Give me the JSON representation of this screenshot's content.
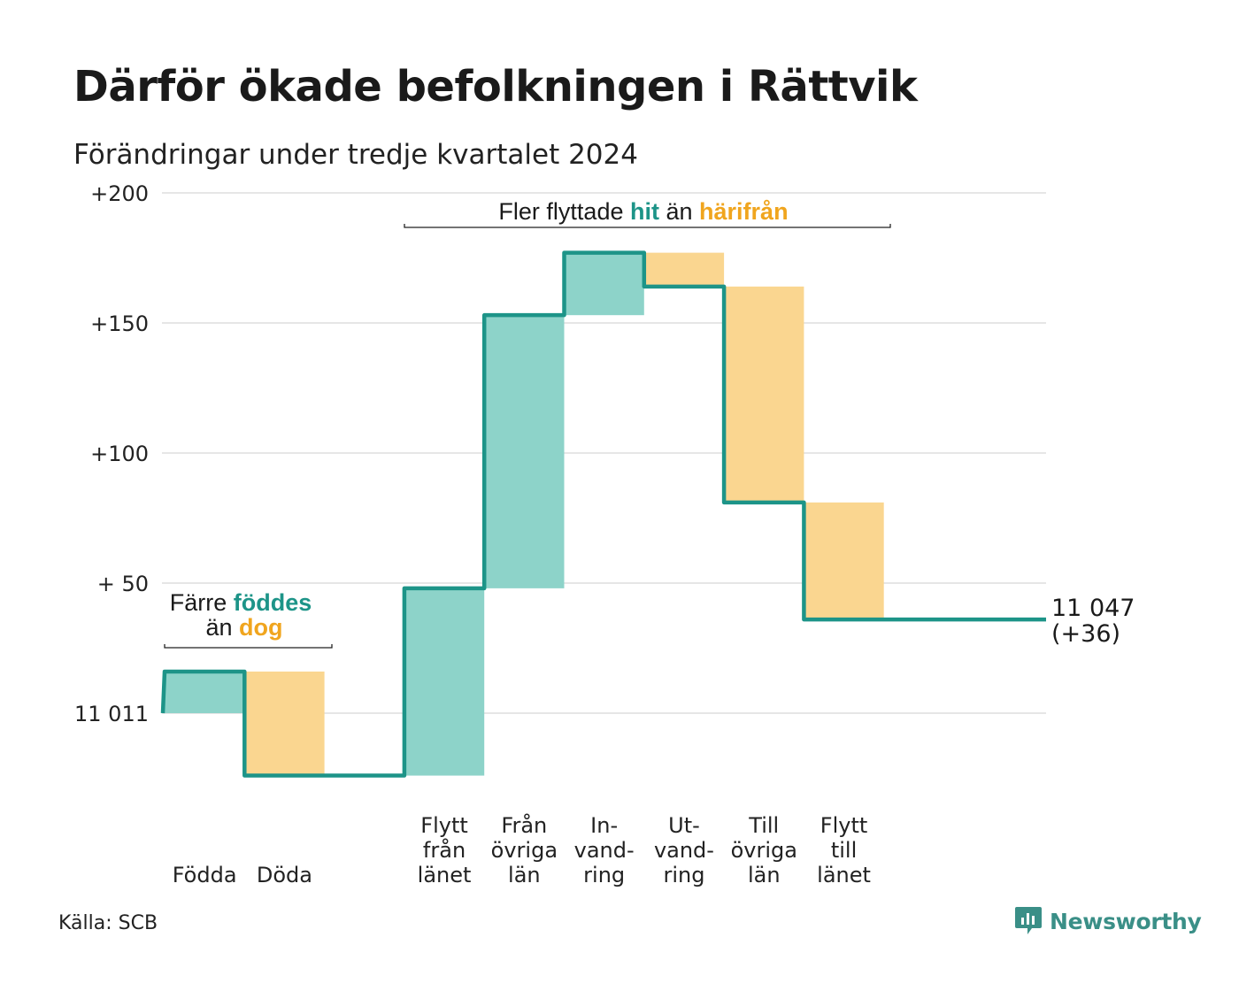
{
  "title": "Därför ökade befolkningen i Rättvik",
  "subtitle": "Förändringar under tredje kvartalet 2024",
  "source": "Källa: SCB",
  "brand": "Newsworthy",
  "colors": {
    "increase": "#8dd3c9",
    "decrease": "#fad690",
    "line": "#1d9488",
    "hit_text": "#1d9488",
    "away_text": "#f0a51e",
    "grid": "#e6e6e6"
  },
  "chart_data": {
    "type": "waterfall",
    "y_tick_labels": [
      "+200",
      "+150",
      "+100",
      "+ 50",
      "11 011"
    ],
    "y_ticks": [
      200,
      150,
      100,
      50,
      0
    ],
    "ylim": [
      -30,
      200
    ],
    "start_value": 11011,
    "categories": [
      {
        "label": [
          "Födda"
        ],
        "change": 16
      },
      {
        "label": [
          "Döda"
        ],
        "change": -40
      },
      {
        "label": [],
        "change": 0
      },
      {
        "label": [
          "Flytt",
          "från",
          "länet"
        ],
        "change": 72
      },
      {
        "label": [
          "Från",
          "övriga",
          "län"
        ],
        "change": 105
      },
      {
        "label": [
          "In-",
          "vand-",
          "ring"
        ],
        "change": 24
      },
      {
        "label": [
          "Ut-",
          "vand-",
          "ring"
        ],
        "change": -13
      },
      {
        "label": [
          "Till",
          "övriga",
          "län"
        ],
        "change": -83
      },
      {
        "label": [
          "Flytt",
          "till",
          "länet"
        ],
        "change": -45
      }
    ],
    "end_value": {
      "label": "11 047",
      "change_label": "(+36)",
      "value": 36
    },
    "annotations": [
      {
        "group": "births",
        "parts": [
          [
            "Färre ",
            "plain"
          ],
          [
            "föddes",
            "hit"
          ]
        ],
        "parts2": [
          [
            "än ",
            "plain"
          ],
          [
            "dog",
            "away"
          ]
        ]
      },
      {
        "group": "migration",
        "parts": [
          [
            "Fler flyttade ",
            "plain"
          ],
          [
            "hit",
            "hit"
          ],
          [
            " än ",
            "plain"
          ],
          [
            "härifrån",
            "away"
          ]
        ]
      }
    ]
  }
}
